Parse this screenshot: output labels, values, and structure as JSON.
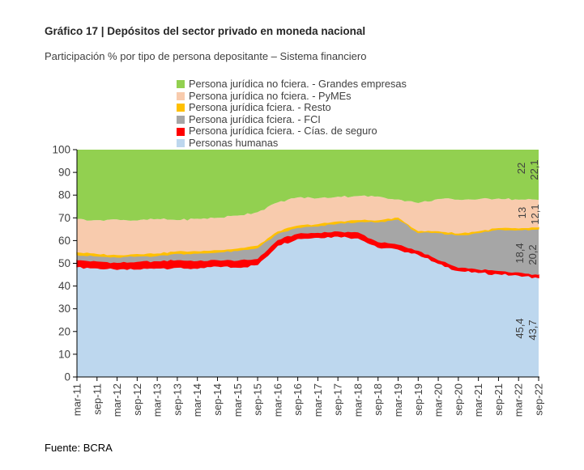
{
  "page": {
    "title": "Gráfico 17 | Depósitos del sector privado en moneda nacional",
    "subtitle": "Participación % por tipo de persona depositante – Sistema financiero",
    "source": "Fuente: BCRA"
  },
  "chart_data": {
    "type": "area",
    "stacked": true,
    "unit": "%",
    "title": "Depósitos del sector privado en moneda nacional",
    "ylabel": "Participación %",
    "ylim": [
      0,
      100
    ],
    "yticks": [
      0,
      10,
      20,
      30,
      40,
      50,
      60,
      70,
      80,
      90,
      100
    ],
    "grid": false,
    "legend_position": "top",
    "x": [
      "mar-11",
      "sep-11",
      "mar-12",
      "sep-12",
      "mar-13",
      "sep-13",
      "mar-14",
      "sep-14",
      "mar-15",
      "sep-15",
      "mar-16",
      "sep-16",
      "mar-17",
      "sep-17",
      "mar-18",
      "sep-18",
      "mar-19",
      "sep-19",
      "mar-20",
      "sep-20",
      "mar-21",
      "sep-21",
      "mar-22",
      "sep-22"
    ],
    "series": [
      {
        "name": "Personas humanas",
        "color": "#bdd7ee",
        "values": [
          48.5,
          48.0,
          47.3,
          47.5,
          48.0,
          48.3,
          47.8,
          48.8,
          48.3,
          49.5,
          58.0,
          61.0,
          61.5,
          62.0,
          61.2,
          57.1,
          56.3,
          54.0,
          50.0,
          46.8,
          46.0,
          45.4,
          44.8,
          43.7
        ]
      },
      {
        "name": "Persona jurídica fciera. - Cías. de seguro",
        "color": "#ff0000",
        "values": [
          2.8,
          2.8,
          2.9,
          3.1,
          2.9,
          3.1,
          3.2,
          2.6,
          2.8,
          2.4,
          2.2,
          2.0,
          1.9,
          2.0,
          2.4,
          2.2,
          1.9,
          1.5,
          1.4,
          1.2,
          1.2,
          1.2,
          1.2,
          1.2
        ]
      },
      {
        "name": "Persona jurídica fciera. - FCI",
        "color": "#a6a6a6",
        "values": [
          2.5,
          2.4,
          2.5,
          2.6,
          2.5,
          3.0,
          3.4,
          3.5,
          4.5,
          5.0,
          3.0,
          2.8,
          3.0,
          3.6,
          4.7,
          8.9,
          11.3,
          8.0,
          12.1,
          14.5,
          16.3,
          18.4,
          18.8,
          20.2
        ]
      },
      {
        "name": "Persona jurídica fciera. - Resto",
        "color": "#ffc000",
        "values": [
          1.0,
          0.9,
          0.9,
          0.9,
          0.9,
          0.9,
          0.9,
          0.9,
          0.9,
          0.9,
          0.8,
          0.8,
          0.8,
          0.8,
          0.7,
          0.7,
          0.6,
          0.6,
          0.6,
          0.6,
          0.6,
          0.5,
          0.5,
          0.7
        ]
      },
      {
        "name": "Persona jurídica no fciera. - PyMEs",
        "color": "#f8cbad",
        "values": [
          14.7,
          14.9,
          15.7,
          14.7,
          15.2,
          13.7,
          14.3,
          14.2,
          14.5,
          14.7,
          12.8,
          12.4,
          11.4,
          10.9,
          10.6,
          10.5,
          8.0,
          12.4,
          14.2,
          14.9,
          14.1,
          13.0,
          12.7,
          12.1
        ]
      },
      {
        "name": "Persona jurídica no fciera. - Grandes empresas",
        "color": "#92d050",
        "values": [
          30.5,
          31.0,
          30.7,
          31.2,
          30.5,
          31.0,
          30.4,
          30.0,
          29.0,
          27.5,
          23.2,
          21.0,
          21.4,
          20.7,
          20.4,
          20.6,
          21.9,
          23.5,
          21.7,
          22.0,
          21.8,
          21.5,
          22.0,
          22.1
        ]
      }
    ],
    "legend_order": [
      5,
      4,
      3,
      2,
      1,
      0
    ],
    "annotations": [
      {
        "series": "Persona jurídica no fciera. - Grandes empresas",
        "labels": [
          "22",
          "22,1"
        ]
      },
      {
        "series": "Persona jurídica no fciera. - PyMEs",
        "labels": [
          "13",
          "12,1"
        ]
      },
      {
        "series": "Persona jurídica fciera. - FCI",
        "labels": [
          "18,4",
          "20,2"
        ]
      },
      {
        "series": "Personas humanas",
        "labels": [
          "45,4",
          "43,7"
        ]
      }
    ]
  }
}
